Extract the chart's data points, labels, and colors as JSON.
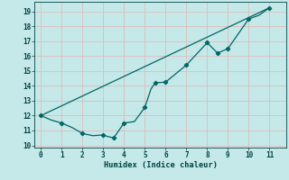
{
  "xlabel": "Humidex (Indice chaleur)",
  "bg_color": "#c5e8e8",
  "grid_color": "#dbbebe",
  "line_color": "#006666",
  "xlim": [
    -0.3,
    11.8
  ],
  "ylim": [
    9.85,
    19.65
  ],
  "xticks": [
    0,
    1,
    2,
    3,
    4,
    5,
    6,
    7,
    8,
    9,
    10,
    11
  ],
  "yticks": [
    10,
    11,
    12,
    13,
    14,
    15,
    16,
    17,
    18,
    19
  ],
  "line1_x": [
    0,
    0.5,
    1,
    1.5,
    2,
    2.5,
    3,
    3.2,
    3.5,
    4,
    4.5,
    5,
    5.3,
    5.5,
    6,
    7,
    8,
    8.5,
    9,
    10,
    10.5,
    11
  ],
  "line1_y": [
    12.0,
    11.7,
    11.5,
    11.2,
    10.8,
    10.65,
    10.7,
    10.6,
    10.5,
    11.5,
    11.6,
    12.55,
    13.8,
    14.2,
    14.25,
    15.4,
    16.9,
    16.2,
    16.5,
    18.5,
    18.75,
    19.25
  ],
  "line1_markers_x": [
    0,
    1,
    2,
    3,
    3.5,
    4,
    5,
    5.5,
    6,
    7,
    8,
    8.5,
    9,
    10,
    11
  ],
  "line1_markers_y": [
    12.0,
    11.5,
    10.8,
    10.7,
    10.5,
    11.5,
    12.55,
    14.2,
    14.25,
    15.4,
    16.9,
    16.2,
    16.5,
    18.5,
    19.25
  ],
  "line2_x": [
    0,
    11
  ],
  "line2_y": [
    12.0,
    19.25
  ]
}
